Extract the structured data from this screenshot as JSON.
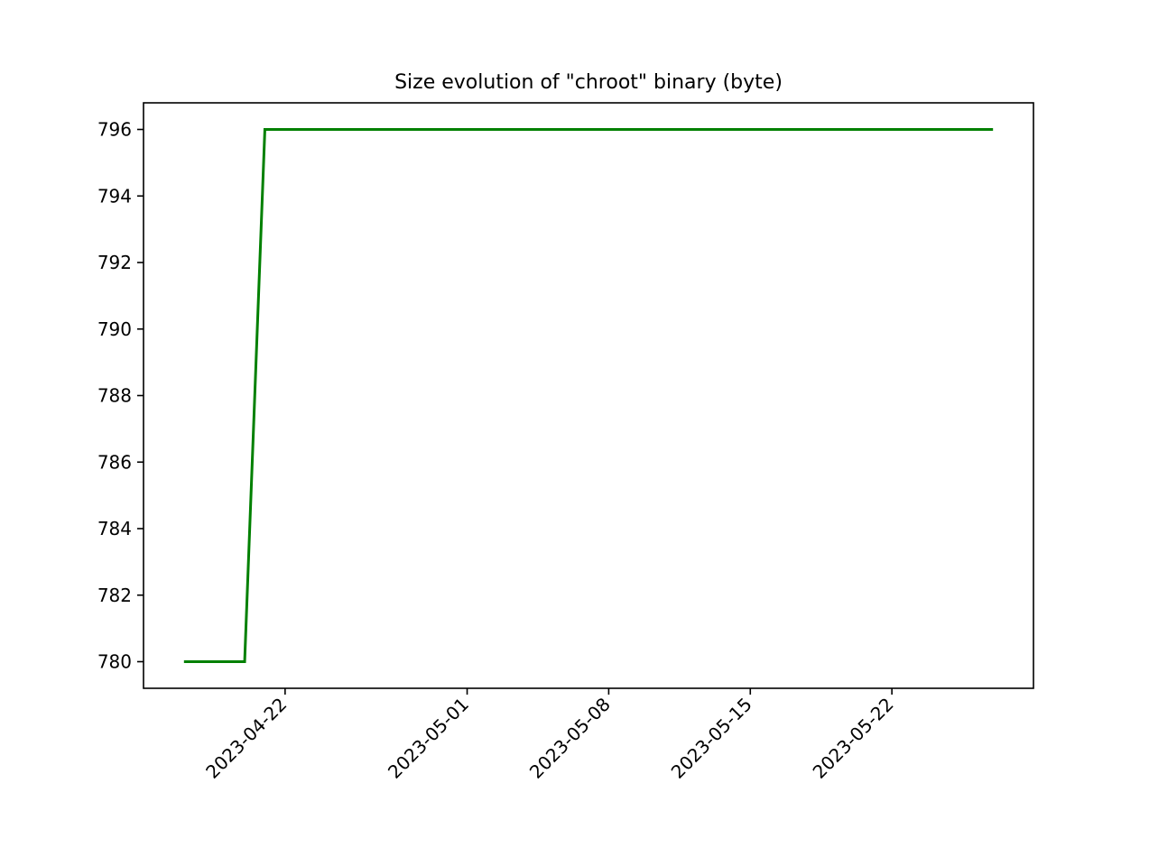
{
  "chart_data": {
    "type": "line",
    "title": "Size evolution of \"chroot\" binary (byte)",
    "xlabel": "",
    "ylabel": "",
    "x_axis_type": "date",
    "xlim": [
      "2023-04-15",
      "2023-05-29"
    ],
    "ylim": [
      779.2,
      796.8
    ],
    "x_ticks": [
      "2023-04-22",
      "2023-05-01",
      "2023-05-08",
      "2023-05-15",
      "2023-05-22"
    ],
    "y_ticks": [
      780,
      782,
      784,
      786,
      788,
      790,
      792,
      794,
      796
    ],
    "grid": false,
    "legend": null,
    "series": [
      {
        "color": "#008000",
        "x": [
          "2023-04-17",
          "2023-04-20",
          "2023-04-21",
          "2023-05-27"
        ],
        "values": [
          780,
          780,
          796,
          796
        ]
      }
    ]
  }
}
